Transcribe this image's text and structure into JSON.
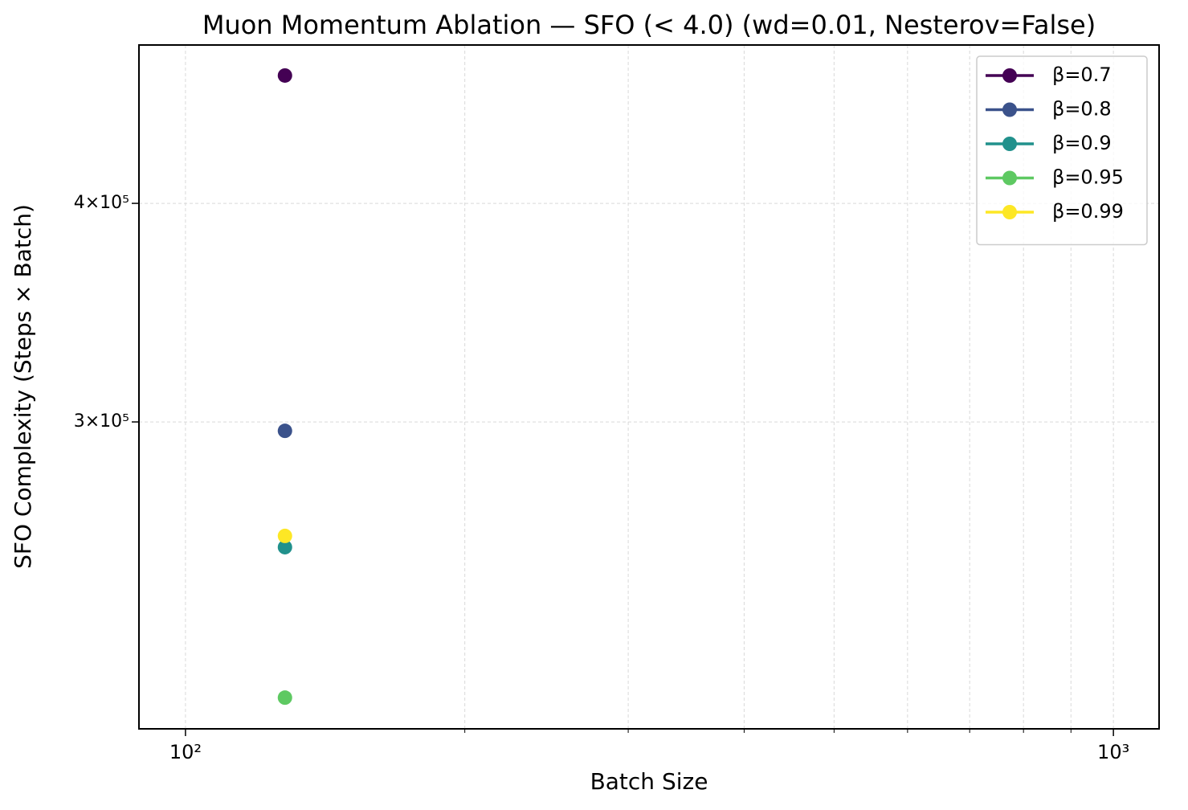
{
  "chart_data": {
    "type": "line",
    "title": "Muon Momentum Ablation — SFO (< 4.0)  (wd=0.01, Nesterov=False)",
    "x_label": "Batch Size",
    "y_label": "SFO Complexity (Steps × Batch)",
    "x_scale": "log",
    "y_scale": "log",
    "xlim": [
      89.1,
      1120
    ],
    "ylim": [
      200300,
      492700
    ],
    "xticks": [
      {
        "value": 100,
        "label": "10²"
      },
      {
        "value": 1000,
        "label": "10³"
      }
    ],
    "xminorticks": [
      200,
      300,
      400,
      500,
      600,
      700,
      800,
      900
    ],
    "yticks": [
      {
        "value": 300000,
        "label": "3×10⁵"
      },
      {
        "value": 400000,
        "label": "4×10⁵"
      }
    ],
    "grid": true,
    "legend_position": "upper right",
    "series": [
      {
        "name": "β=0.7",
        "color": "#440154",
        "x": [
          128
        ],
        "values": [
          473300
        ]
      },
      {
        "name": "β=0.8",
        "color": "#3b528b",
        "x": [
          128
        ],
        "values": [
          296500
        ]
      },
      {
        "name": "β=0.9",
        "color": "#21918c",
        "x": [
          128
        ],
        "values": [
          254400
        ]
      },
      {
        "name": "β=0.95",
        "color": "#5ec962",
        "x": [
          128
        ],
        "values": [
          208700
        ]
      },
      {
        "name": "β=0.99",
        "color": "#fde725",
        "x": [
          128
        ],
        "values": [
          258200
        ]
      }
    ]
  }
}
